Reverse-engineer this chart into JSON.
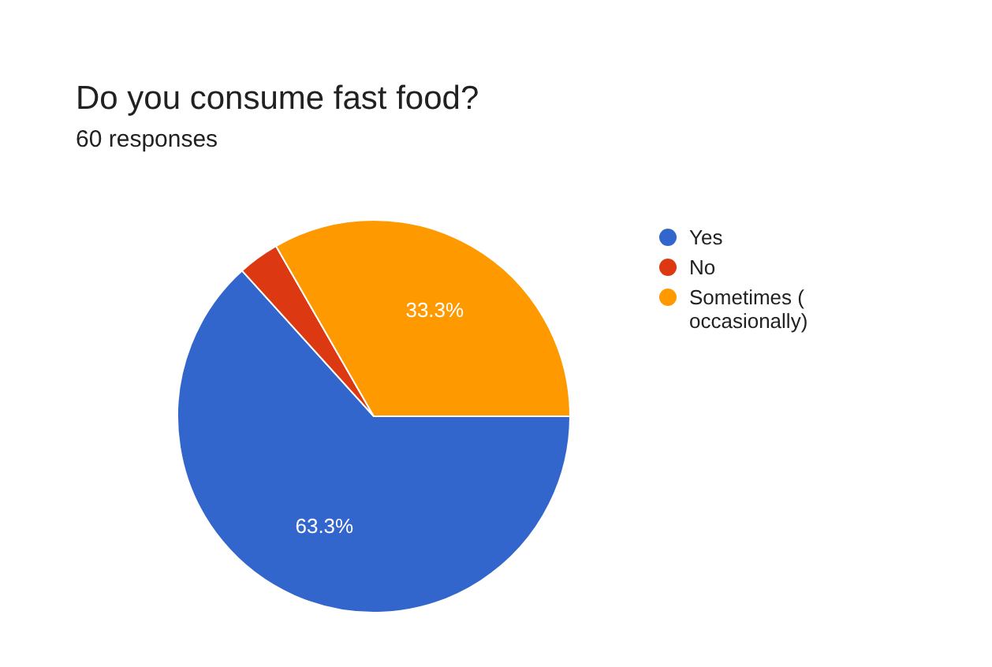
{
  "chart_data": {
    "type": "pie",
    "title": "Do you consume fast food?",
    "subtitle": "60 responses",
    "categories": [
      "Yes",
      "No",
      "Sometimes ( occasionally)"
    ],
    "values": [
      63.3,
      3.4,
      33.3
    ],
    "colors": [
      "#3366cc",
      "#dc3912",
      "#ff9900"
    ],
    "value_labels": [
      "63.3%",
      null,
      "33.3%"
    ],
    "legend": "right"
  }
}
